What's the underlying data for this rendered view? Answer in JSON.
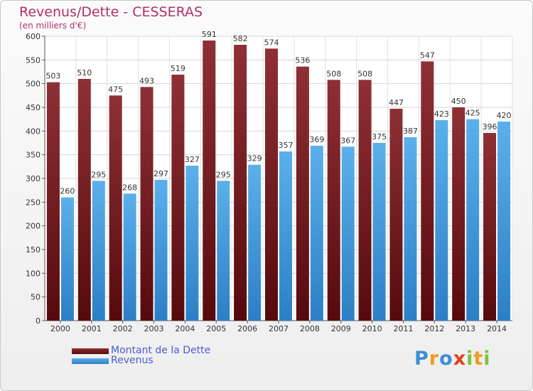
{
  "chart_data": {
    "type": "bar",
    "title": "Revenus/Dette - CESSERAS",
    "subtitle": "(en milliers d'€)",
    "categories": [
      "2000",
      "2001",
      "2002",
      "2003",
      "2004",
      "2005",
      "2006",
      "2007",
      "2008",
      "2009",
      "2010",
      "2011",
      "2012",
      "2013",
      "2014"
    ],
    "series": [
      {
        "name": "Montant de la Dette",
        "color": "#7a1e22",
        "values": [
          503,
          510,
          475,
          493,
          519,
          591,
          582,
          574,
          536,
          508,
          508,
          447,
          547,
          450,
          396
        ]
      },
      {
        "name": "Revenus",
        "color": "#4aa3e6",
        "values": [
          260,
          295,
          268,
          297,
          327,
          295,
          329,
          357,
          369,
          367,
          375,
          387,
          423,
          425,
          420
        ]
      }
    ],
    "ylim": [
      0,
      600
    ],
    "yticks": [
      0,
      50,
      100,
      150,
      200,
      250,
      300,
      350,
      400,
      450,
      500,
      550,
      600
    ],
    "grid": true,
    "legend_position": "bottom-left"
  },
  "logo": {
    "letters": [
      "P",
      "r",
      "o",
      "x",
      "i",
      "t",
      "i"
    ],
    "colors": [
      "#3a8fd8",
      "#f29a1c",
      "#3a8fd8",
      "#e8401c",
      "#7cc242",
      "#f29a1c",
      "#7cc242"
    ]
  }
}
